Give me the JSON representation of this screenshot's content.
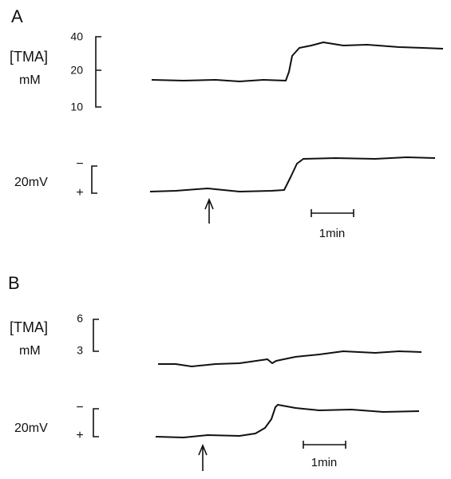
{
  "panels": [
    {
      "label": "A",
      "concentration_label": "[TMA]",
      "concentration_unit": "mM",
      "concentration_ticks": [
        "40",
        "20",
        "10"
      ],
      "voltage_scale": "20mV",
      "voltage_signs": [
        "−",
        "+"
      ],
      "time_scale": "1min"
    },
    {
      "label": "B",
      "concentration_label": "[TMA]",
      "concentration_unit": "mM",
      "concentration_ticks": [
        "6",
        "3"
      ],
      "voltage_scale": "20mV",
      "voltage_signs": [
        "−",
        "+"
      ],
      "time_scale": "1min"
    }
  ]
}
